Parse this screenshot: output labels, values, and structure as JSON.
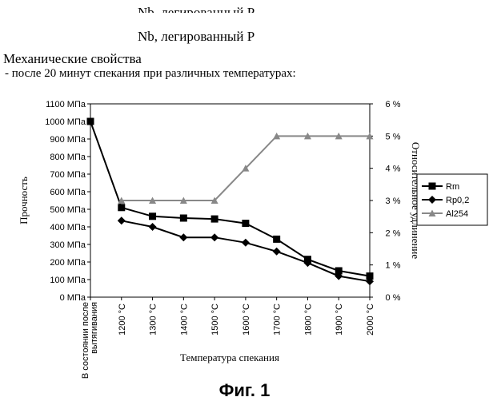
{
  "header": {
    "line1": "Nb. легированный P",
    "line2": "Nb, легированный P",
    "line3": "Механические свойства",
    "line4": "-  после 20 минут спекания при различных температурах:"
  },
  "figure_caption": "Фиг. 1",
  "chart_data": {
    "type": "line",
    "title": "",
    "xlabel": "Температура спекания",
    "ylabel": "Прочность",
    "y2label": "Относительное удлинение",
    "categories": [
      "В состоянии после вытягивания",
      "1200 °C",
      "1300 °C",
      "1400 °C",
      "1500 °C",
      "1600 °C",
      "1700 °C",
      "1800 °C",
      "1900 °C",
      "2000 °C"
    ],
    "ylim": [
      0,
      1100
    ],
    "y_ticks": [
      "0 МПа",
      "100 МПа",
      "200 МПа",
      "300 МПа",
      "400 МПа",
      "500 МПа",
      "600 МПа",
      "700 МПа",
      "800 МПа",
      "900 МПа",
      "1000 МПа",
      "1100 МПа"
    ],
    "y2lim": [
      0,
      6
    ],
    "y2_ticks": [
      "0 %",
      "1 %",
      "2 %",
      "3 %",
      "4 %",
      "5 %",
      "6 %"
    ],
    "legend_position": "right",
    "series": [
      {
        "name": "Rm",
        "axis": "left",
        "marker": "square",
        "color": "#000000",
        "values": [
          1000,
          510,
          460,
          450,
          445,
          420,
          330,
          215,
          150,
          120
        ]
      },
      {
        "name": "Rp0,2",
        "axis": "left",
        "marker": "diamond",
        "color": "#000000",
        "values": [
          null,
          435,
          400,
          340,
          340,
          310,
          260,
          195,
          120,
          90
        ]
      },
      {
        "name": "Al254",
        "axis": "right",
        "marker": "triangle",
        "color": "#888888",
        "values": [
          null,
          3,
          3,
          3,
          3,
          4,
          5,
          5,
          5,
          5
        ]
      }
    ]
  }
}
